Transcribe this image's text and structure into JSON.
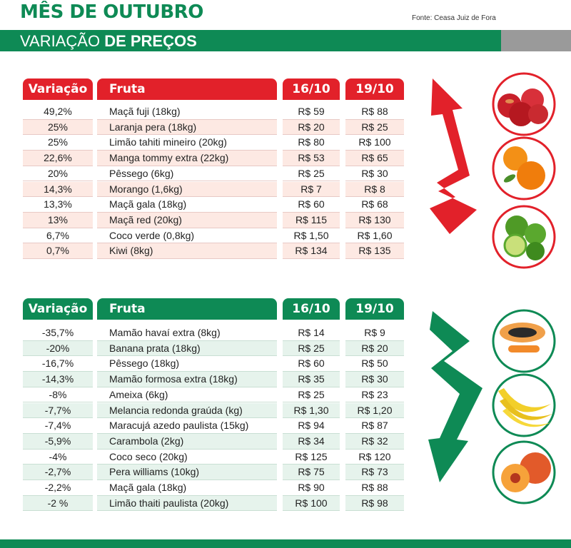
{
  "header": {
    "title": "MÊS DE OUTUBRO",
    "source": "Fonte: Ceasa Juiz de Fora",
    "subtitle_light": "VARIAÇÃO ",
    "subtitle_bold": "DE PREÇOS"
  },
  "columns": {
    "variacao": "Variação",
    "fruta": "Fruta",
    "date1": "16/10",
    "date2": "19/10"
  },
  "colors": {
    "up": "#e2212a",
    "down": "#0e8a55"
  },
  "increases": [
    {
      "variacao": "49,2%",
      "fruta": "Maçã fuji (18kg)",
      "p1": "R$ 59",
      "p2": "R$ 88"
    },
    {
      "variacao": "25%",
      "fruta": "Laranja pera (18kg)",
      "p1": "R$ 20",
      "p2": "R$ 25"
    },
    {
      "variacao": "25%",
      "fruta": "Limão tahiti mineiro (20kg)",
      "p1": "R$ 80",
      "p2": "R$ 100"
    },
    {
      "variacao": "22,6%",
      "fruta": "Manga tommy extra (22kg)",
      "p1": "R$ 53",
      "p2": "R$ 65"
    },
    {
      "variacao": "20%",
      "fruta": "Pêssego (6kg)",
      "p1": "R$ 25",
      "p2": "R$ 30"
    },
    {
      "variacao": "14,3%",
      "fruta": "Morango  (1,6kg)",
      "p1": "R$ 7",
      "p2": "R$ 8"
    },
    {
      "variacao": "13,3%",
      "fruta": "Maçã gala (18kg)",
      "p1": "R$ 60",
      "p2": "R$ 68"
    },
    {
      "variacao": "13%",
      "fruta": "Maçã red  (20kg)",
      "p1": "R$ 115",
      "p2": "R$ 130"
    },
    {
      "variacao": "6,7%",
      "fruta": "Coco verde (0,8kg)",
      "p1": "R$ 1,50",
      "p2": "R$ 1,60"
    },
    {
      "variacao": "0,7%",
      "fruta": "Kiwi (8kg)",
      "p1": "R$ 134",
      "p2": "R$ 135"
    }
  ],
  "decreases": [
    {
      "variacao": "-35,7%",
      "fruta": "Mamão havaí extra (8kg)",
      "p1": "R$ 14",
      "p2": "R$ 9"
    },
    {
      "variacao": "-20%",
      "fruta": "Banana prata  (18kg)",
      "p1": "R$ 25",
      "p2": "R$ 20"
    },
    {
      "variacao": "-16,7%",
      "fruta": "Pêssego (18kg)",
      "p1": "R$ 60",
      "p2": "R$ 50"
    },
    {
      "variacao": "-14,3%",
      "fruta": "Mamão formosa extra (18kg)",
      "p1": "R$ 35",
      "p2": "R$ 30"
    },
    {
      "variacao": "-8%",
      "fruta": "Ameixa (6kg)",
      "p1": "R$ 25",
      "p2": "R$ 23"
    },
    {
      "variacao": "-7,7%",
      "fruta": "Melancia redonda graúda (kg)",
      "p1": "R$ 1,30",
      "p2": "R$ 1,20"
    },
    {
      "variacao": "-7,4%",
      "fruta": "Maracujá azedo paulista (15kg)",
      "p1": "R$ 94",
      "p2": "R$ 87"
    },
    {
      "variacao": "-5,9%",
      "fruta": "Carambola (2kg)",
      "p1": "R$ 34",
      "p2": "R$ 32"
    },
    {
      "variacao": "-4%",
      "fruta": "Coco seco (20kg)",
      "p1": "R$ 125",
      "p2": "R$ 120"
    },
    {
      "variacao": "-2,7%",
      "fruta": "Pera williams (10kg)",
      "p1": "R$ 75",
      "p2": "R$ 73"
    },
    {
      "variacao": "-2,2%",
      "fruta": "Maçã gala (18kg)",
      "p1": "R$ 90",
      "p2": "R$ 88"
    },
    {
      "variacao": "-2 %",
      "fruta": "Limão thaiti paulista (20kg)",
      "p1": "R$ 100",
      "p2": "R$ 98"
    }
  ],
  "illustrations": {
    "arrow_up": "red-up-arrow-icon",
    "arrow_down": "green-down-arrow-icon",
    "fruits_up": [
      "apples-icon",
      "oranges-icon",
      "limes-icon"
    ],
    "fruits_down": [
      "papaya-icon",
      "bananas-icon",
      "peach-icon"
    ]
  }
}
